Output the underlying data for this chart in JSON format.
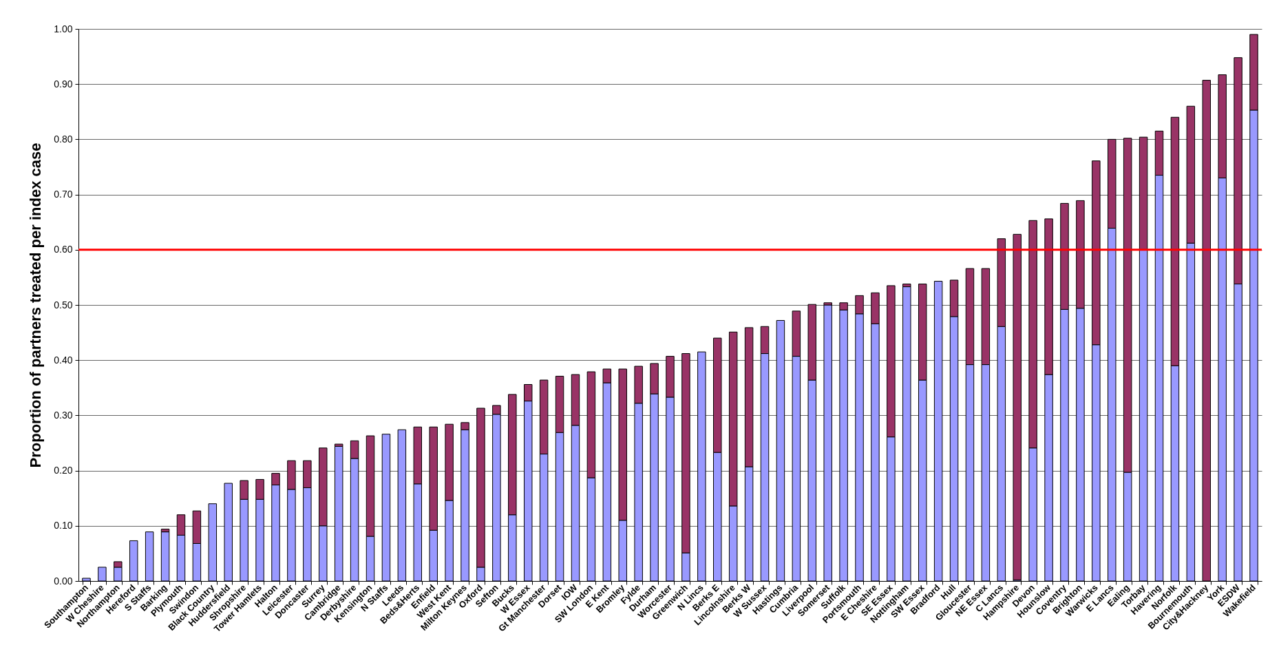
{
  "chart_data": {
    "type": "bar",
    "stacked": true,
    "ylabel": "Proportion of partners treated per index case",
    "categories": [
      "Southampton",
      "W Cheshire",
      "Northampton",
      "Hereford",
      "S Staffs",
      "Barking",
      "Plymouth",
      "Swindon",
      "Black Country",
      "Huddersfield",
      "Shropshire",
      "Tower Hamlets",
      "Halton",
      "Leicester",
      "Doncaster",
      "Surrey",
      "Cambridge",
      "Derbyshire",
      "Kensington",
      "N Staffs",
      "Leeds",
      "Beds&Herts",
      "Enfield",
      "West Kent",
      "Milton Keynes",
      "Oxford",
      "Sefton",
      "Bucks",
      "W Essex",
      "Gt Manchester",
      "Dorset",
      "IOW",
      "SW London",
      "E Kent",
      "Bromley",
      "Fylde",
      "Durham",
      "Worcester",
      "Greenwich",
      "N Lincs",
      "Berks E",
      "Lincolnshire",
      "Berks W",
      "W Sussex",
      "Hastings",
      "Cumbria",
      "Liverpool",
      "Somerset",
      "Suffolk",
      "Portsmouth",
      "E Cheshire",
      "SE Essex",
      "Nottingham",
      "SW Essex",
      "Bradford",
      "Hull",
      "Gloucester",
      "NE Essex",
      "C Lancs",
      "Hampshire",
      "Devon",
      "Hounslow",
      "Coventry",
      "Brighton",
      "Warwicks",
      "E Lancs",
      "Ealing",
      "Torbay",
      "Havering",
      "Norfolk",
      "Bournemouth",
      "City&Hackney",
      "York",
      "ESDW",
      "Wakefield"
    ],
    "series": [
      {
        "color": "#9999ff",
        "values": [
          0.005,
          0.025,
          0.025,
          0.073,
          0.089,
          0.089,
          0.083,
          0.068,
          0.14,
          0.177,
          0.148,
          0.148,
          0.174,
          0.166,
          0.169,
          0.1,
          0.244,
          0.222,
          0.081,
          0.266,
          0.274,
          0.176,
          0.092,
          0.146,
          0.274,
          0.025,
          0.302,
          0.12,
          0.326,
          0.23,
          0.269,
          0.282,
          0.187,
          0.359,
          0.11,
          0.322,
          0.339,
          0.333,
          0.051,
          0.415,
          0.233,
          0.136,
          0.207,
          0.412,
          0.472,
          0.407,
          0.364,
          0.5,
          0.491,
          0.484,
          0.466,
          0.261,
          0.533,
          0.364,
          0.543,
          0.479,
          0.392,
          0.392,
          0.461,
          0.002,
          0.241,
          0.374,
          0.492,
          0.494,
          0.428,
          0.639,
          0.197,
          0.6,
          0.735,
          0.39,
          0.612,
          null,
          0.73,
          0.538,
          0.853
        ]
      },
      {
        "color": "#993366",
        "values": [
          null,
          null,
          0.01,
          null,
          null,
          0.005,
          0.037,
          0.059,
          null,
          null,
          0.034,
          0.036,
          0.021,
          0.052,
          0.049,
          0.141,
          0.004,
          0.032,
          0.182,
          null,
          null,
          0.103,
          0.187,
          0.138,
          0.013,
          0.288,
          0.016,
          0.218,
          0.03,
          0.134,
          0.102,
          0.092,
          0.192,
          0.025,
          0.274,
          0.067,
          0.055,
          0.074,
          0.361,
          null,
          0.207,
          0.315,
          0.252,
          0.049,
          null,
          0.082,
          0.137,
          0.004,
          0.013,
          0.033,
          0.056,
          0.274,
          0.005,
          0.174,
          null,
          0.066,
          0.174,
          0.174,
          0.159,
          0.626,
          0.412,
          0.282,
          0.192,
          0.195,
          0.333,
          0.161,
          0.605,
          0.204,
          0.08,
          0.45,
          0.248,
          0.907,
          0.187,
          0.41,
          0.137
        ]
      }
    ],
    "ylim": [
      0,
      1
    ],
    "yticks": [
      {
        "value": 0,
        "label": "0.00"
      },
      {
        "value": 0.1,
        "label": "0.10"
      },
      {
        "value": 0.2,
        "label": "0.20"
      },
      {
        "value": 0.3,
        "label": "0.30"
      },
      {
        "value": 0.4,
        "label": "0.40"
      },
      {
        "value": 0.5,
        "label": "0.50"
      },
      {
        "value": 0.6,
        "label": "0.60"
      },
      {
        "value": 0.7,
        "label": "0.70"
      },
      {
        "value": 0.8,
        "label": "0.80"
      },
      {
        "value": 0.9,
        "label": "0.90"
      },
      {
        "value": 1,
        "label": "1.00"
      }
    ],
    "grid": "y",
    "ref_lines": [
      {
        "axis": "y",
        "value": 0.6,
        "color": "#ff0000"
      }
    ]
  }
}
